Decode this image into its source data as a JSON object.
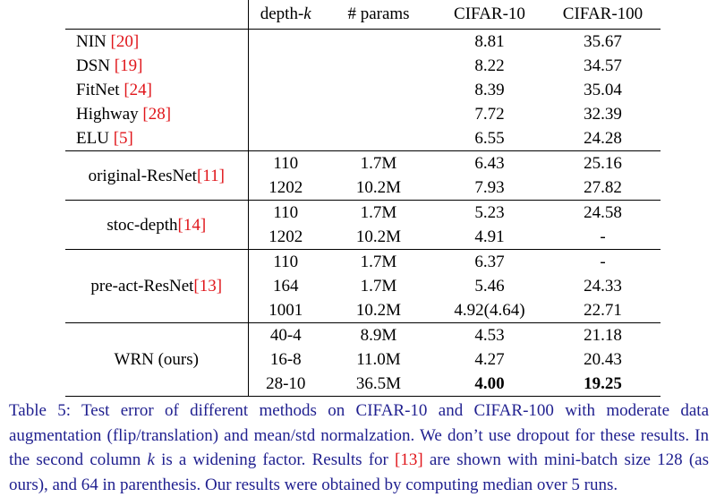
{
  "header": {
    "c0": "",
    "depth": "depth-",
    "depth_k": "k",
    "params": "# params",
    "c10": "CIFAR-10",
    "c100": "CIFAR-100"
  },
  "rows": [
    {
      "name": "NIN ",
      "ref": "[20]",
      "c10": "8.81",
      "c100": "35.67"
    },
    {
      "name": "DSN ",
      "ref": "[19]",
      "c10": "8.22",
      "c100": "34.57"
    },
    {
      "name": "FitNet ",
      "ref": "[24]",
      "c10": "8.39",
      "c100": "35.04"
    },
    {
      "name": "Highway ",
      "ref": "[28]",
      "c10": "7.72",
      "c100": "32.39"
    },
    {
      "name": "ELU ",
      "ref": "[5]",
      "c10": "6.55",
      "c100": "24.28"
    }
  ],
  "groups": [
    {
      "name": "original-ResNet",
      "ref": "[11]",
      "rows": [
        {
          "depth": "110",
          "params": "1.7M",
          "c10": "6.43",
          "c100": "25.16"
        },
        {
          "depth": "1202",
          "params": "10.2M",
          "c10": "7.93",
          "c100": "27.82"
        }
      ]
    },
    {
      "name": "stoc-depth",
      "ref": "[14]",
      "rows": [
        {
          "depth": "110",
          "params": "1.7M",
          "c10": "5.23",
          "c100": "24.58"
        },
        {
          "depth": "1202",
          "params": "10.2M",
          "c10": "4.91",
          "c100": "-"
        }
      ]
    },
    {
      "name": "pre-act-ResNet",
      "ref": "[13]",
      "rows": [
        {
          "depth": "110",
          "params": "1.7M",
          "c10": "6.37",
          "c100": "-"
        },
        {
          "depth": "164",
          "params": "1.7M",
          "c10": "5.46",
          "c100": "24.33"
        },
        {
          "depth": "1001",
          "params": "10.2M",
          "c10": "4.92(4.64)",
          "c100": "22.71"
        }
      ]
    },
    {
      "name": "WRN (ours)",
      "ref": "",
      "rows": [
        {
          "depth": "40-4",
          "params": "8.9M",
          "c10": "4.53",
          "c100": "21.18"
        },
        {
          "depth": "16-8",
          "params": "11.0M",
          "c10": "4.27",
          "c100": "20.43"
        },
        {
          "depth": "28-10",
          "params": "36.5M",
          "c10": "4.00",
          "c100": "19.25"
        }
      ]
    }
  ],
  "caption": {
    "part1": "Table 5: Test error of different methods on CIFAR-10 and CIFAR-100 with moderate data augmentation (flip/translation) and mean/std normalzation. We don’t use dropout for these results. In the second column ",
    "k": "k",
    "part2": " is a widening factor. Results for ",
    "ref": "[13]",
    "part3": " are shown with mini-batch size 128 (as ours), and 64 in parenthesis. Our results were obtained by computing median over 5 runs."
  },
  "colors": {
    "caption": "#1f1f8f",
    "ref": "#e0161b"
  }
}
